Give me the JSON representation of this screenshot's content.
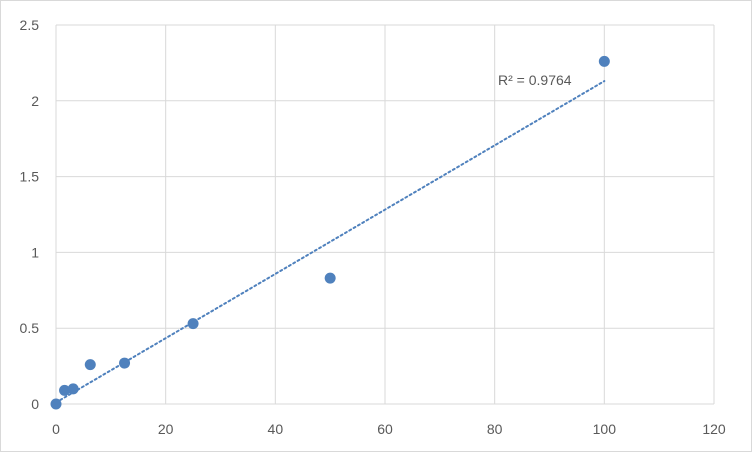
{
  "chart_data": {
    "type": "scatter",
    "title": "",
    "xlabel": "",
    "ylabel": "",
    "xlim": [
      0,
      120
    ],
    "ylim": [
      0,
      2.5
    ],
    "x_ticks": [
      0,
      20,
      40,
      60,
      80,
      100,
      120
    ],
    "y_ticks": [
      0,
      0.5,
      1,
      1.5,
      2,
      2.5
    ],
    "x_tick_labels": [
      "0",
      "20",
      "40",
      "60",
      "80",
      "100",
      "120"
    ],
    "y_tick_labels": [
      "0",
      "0.5",
      "1",
      "1.5",
      "2",
      "2.5"
    ],
    "grid": true,
    "legend": "none",
    "series": [
      {
        "points": [
          {
            "x": 0,
            "y": 0.0
          },
          {
            "x": 1.56,
            "y": 0.09
          },
          {
            "x": 3.13,
            "y": 0.1
          },
          {
            "x": 6.25,
            "y": 0.26
          },
          {
            "x": 12.5,
            "y": 0.27
          },
          {
            "x": 25,
            "y": 0.53
          },
          {
            "x": 50,
            "y": 0.83
          },
          {
            "x": 100,
            "y": 2.26
          }
        ],
        "color": "#4f81bd"
      }
    ],
    "trendline": {
      "type": "linear",
      "style": "dotted",
      "color": "#4f81bd",
      "x_range": [
        0,
        100
      ],
      "y_range": [
        0.01,
        2.13
      ],
      "annotation": "R² = 0.9764"
    },
    "colors": {
      "axis": "#d9d9d9",
      "grid": "#d9d9d9",
      "tick_text": "#595959"
    }
  }
}
